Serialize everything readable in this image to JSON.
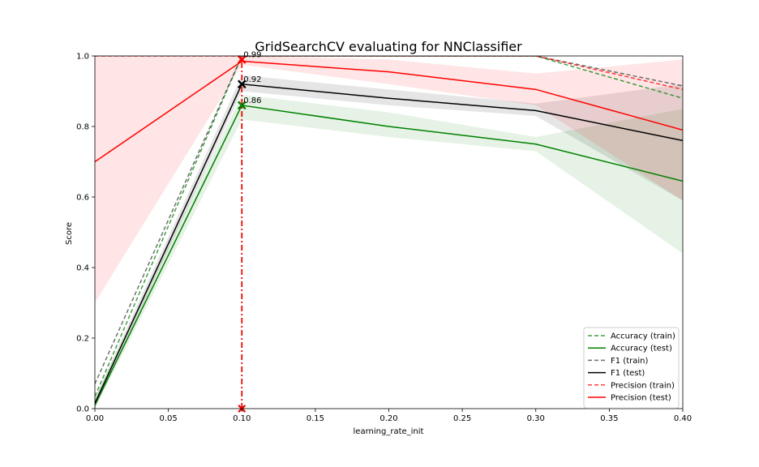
{
  "chart_data": {
    "type": "line",
    "title": "GridSearchCV evaluating for NNClassifier",
    "xlabel": "learning_rate_init",
    "ylabel": "Score",
    "xlim": [
      0.0,
      0.4
    ],
    "ylim": [
      0.0,
      1.0
    ],
    "xticks": [
      "0.00",
      "0.05",
      "0.10",
      "0.15",
      "0.20",
      "0.25",
      "0.30",
      "0.35",
      "0.40"
    ],
    "yticks": [
      "0.0",
      "0.2",
      "0.4",
      "0.6",
      "0.8",
      "1.0"
    ],
    "grid": false,
    "legend_position": "bottom-right",
    "x": [
      0.0,
      0.1,
      0.2,
      0.3,
      0.4
    ],
    "series": [
      {
        "name": "Accuracy (train)",
        "color": "#008000",
        "dashed": true,
        "values": [
          0.035,
          1.0,
          1.0,
          1.0,
          0.88
        ],
        "lower": [
          0.035,
          1.0,
          1.0,
          1.0,
          0.88
        ],
        "upper": [
          0.035,
          1.0,
          1.0,
          1.0,
          0.88
        ]
      },
      {
        "name": "Accuracy (test)",
        "color": "#008000",
        "dashed": false,
        "values": [
          0.01,
          0.86,
          0.8,
          0.75,
          0.645
        ],
        "lower": [
          0.0,
          0.82,
          0.77,
          0.73,
          0.44
        ],
        "upper": [
          0.03,
          0.89,
          0.84,
          0.77,
          0.85
        ]
      },
      {
        "name": "F1 (train)",
        "color": "#404040",
        "dashed": true,
        "values": [
          0.07,
          1.0,
          1.0,
          1.0,
          0.915
        ],
        "lower": [
          0.07,
          1.0,
          1.0,
          1.0,
          0.915
        ],
        "upper": [
          0.07,
          1.0,
          1.0,
          1.0,
          0.915
        ]
      },
      {
        "name": "F1 (test)",
        "color": "#000000",
        "dashed": false,
        "values": [
          0.015,
          0.92,
          0.88,
          0.845,
          0.76
        ],
        "lower": [
          0.0,
          0.9,
          0.86,
          0.83,
          0.59
        ],
        "upper": [
          0.03,
          0.945,
          0.905,
          0.865,
          0.92
        ]
      },
      {
        "name": "Precision (train)",
        "color": "#ff0000",
        "dashed": true,
        "values": [
          1.0,
          1.0,
          1.0,
          1.0,
          0.905
        ],
        "lower": [
          1.0,
          1.0,
          1.0,
          1.0,
          0.905
        ],
        "upper": [
          1.0,
          1.0,
          1.0,
          1.0,
          0.905
        ]
      },
      {
        "name": "Precision (test)",
        "color": "#ff0000",
        "dashed": false,
        "values": [
          0.7,
          0.985,
          0.955,
          0.905,
          0.79
        ],
        "lower": [
          0.3,
          0.975,
          0.92,
          0.86,
          0.59
        ],
        "upper": [
          1.0,
          1.0,
          0.99,
          0.95,
          0.99
        ]
      }
    ],
    "best_markers": [
      {
        "x": 0.1,
        "y": 0.86,
        "label": "0.86",
        "color": "#008000"
      },
      {
        "x": 0.1,
        "y": 0.92,
        "label": "0.92",
        "color": "#000000"
      },
      {
        "x": 0.1,
        "y": 0.99,
        "label": "0.99",
        "color": "#ff0000"
      }
    ],
    "best_vline": {
      "x": 0.1,
      "colors": [
        "#008000",
        "#000000",
        "#ff0000"
      ]
    }
  }
}
